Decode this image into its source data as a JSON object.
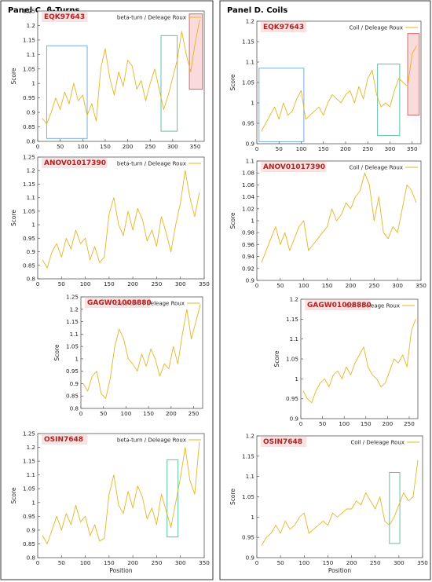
{
  "panels": [
    {
      "title": "Panel C. β-Turns"
    },
    {
      "title": "Panel D. Coils"
    }
  ],
  "chart_data": [
    {
      "type": "line",
      "panel": "C",
      "protein": "EQK97643",
      "legend": "beta-turn / Deleage  Roux",
      "xlabel": "",
      "ylabel": "Score",
      "xlim": [
        0,
        370
      ],
      "ylim": [
        0.8,
        1.25
      ],
      "xticks": [
        0,
        50,
        100,
        150,
        200,
        250,
        300,
        350
      ],
      "yticks": [
        0.8,
        0.85,
        0.9,
        0.95,
        1,
        1.05,
        1.1,
        1.15,
        1.2,
        1.25
      ],
      "x": [
        10,
        20,
        30,
        40,
        50,
        60,
        70,
        80,
        90,
        100,
        110,
        120,
        130,
        140,
        150,
        160,
        170,
        180,
        190,
        200,
        210,
        220,
        230,
        240,
        250,
        260,
        270,
        280,
        290,
        300,
        310,
        320,
        330,
        340,
        350,
        360
      ],
      "values": [
        0.88,
        0.86,
        0.9,
        0.95,
        0.91,
        0.97,
        0.93,
        1.0,
        0.94,
        0.96,
        0.89,
        0.93,
        0.87,
        1.05,
        1.12,
        1.02,
        0.96,
        1.04,
        0.99,
        1.08,
        1.06,
        0.98,
        1.01,
        0.94,
        1.0,
        1.05,
        0.98,
        0.91,
        0.96,
        1.02,
        1.08,
        1.18,
        1.1,
        1.04,
        1.14,
        1.22
      ],
      "highlights": [
        {
          "x": [
            20,
            110
          ],
          "y": [
            0.81,
            1.13
          ],
          "color": "#7aaee0"
        },
        {
          "x": [
            274,
            310
          ],
          "y": [
            0.835,
            1.165
          ],
          "color": "#5fc0a8"
        },
        {
          "x": [
            337,
            366
          ],
          "y": [
            0.98,
            1.24
          ],
          "color": "#d36a6a",
          "fill": "rgba(240,150,150,0.35)"
        }
      ]
    },
    {
      "type": "line",
      "panel": "C",
      "protein": "ANOV01017390",
      "legend": "beta-turn / Deleage  Roux",
      "xlabel": "",
      "ylabel": "Score",
      "xlim": [
        0,
        350
      ],
      "ylim": [
        0.8,
        1.25
      ],
      "xticks": [
        0,
        50,
        100,
        150,
        200,
        250,
        300,
        350
      ],
      "yticks": [
        0.8,
        0.85,
        0.9,
        0.95,
        1,
        1.05,
        1.1,
        1.15,
        1.2,
        1.25
      ],
      "x": [
        10,
        20,
        30,
        40,
        50,
        60,
        70,
        80,
        90,
        100,
        110,
        120,
        130,
        140,
        150,
        160,
        170,
        180,
        190,
        200,
        210,
        220,
        230,
        240,
        250,
        260,
        270,
        280,
        290,
        300,
        310,
        320,
        330,
        340
      ],
      "values": [
        0.87,
        0.84,
        0.9,
        0.93,
        0.88,
        0.95,
        0.91,
        0.98,
        0.93,
        0.95,
        0.87,
        0.92,
        0.86,
        0.88,
        1.04,
        1.1,
        1.0,
        0.96,
        1.05,
        0.98,
        1.06,
        1.02,
        0.94,
        0.98,
        0.92,
        1.03,
        0.97,
        0.9,
        1.0,
        1.08,
        1.2,
        1.1,
        1.03,
        1.12
      ],
      "highlights": []
    },
    {
      "type": "line",
      "panel": "C",
      "protein": "GAGW01008880",
      "legend": "beta-turn / Deleage  Roux",
      "xlabel": "",
      "ylabel": "Score",
      "xlim": [
        0,
        270
      ],
      "ylim": [
        0.8,
        1.25
      ],
      "xticks": [
        0,
        50,
        100,
        150,
        200,
        250
      ],
      "yticks": [
        0.8,
        0.85,
        0.9,
        0.95,
        1,
        1.05,
        1.1,
        1.15,
        1.2,
        1.25
      ],
      "x": [
        5,
        15,
        25,
        35,
        45,
        55,
        65,
        75,
        85,
        95,
        105,
        115,
        125,
        135,
        145,
        155,
        165,
        175,
        185,
        195,
        205,
        215,
        225,
        235,
        245,
        255,
        265
      ],
      "values": [
        0.9,
        0.87,
        0.93,
        0.95,
        0.86,
        0.84,
        0.92,
        1.05,
        1.12,
        1.08,
        1.0,
        0.98,
        0.95,
        1.02,
        0.97,
        1.04,
        1.0,
        0.93,
        0.98,
        0.96,
        1.05,
        0.98,
        1.1,
        1.2,
        1.08,
        1.15,
        1.22
      ],
      "highlights": []
    },
    {
      "type": "line",
      "panel": "C",
      "protein": "OSIN7648",
      "legend": "beta-turn / Deleage  Roux",
      "xlabel": "Position",
      "ylabel": "Score",
      "xlim": [
        0,
        350
      ],
      "ylim": [
        0.8,
        1.25
      ],
      "xticks": [
        0,
        50,
        100,
        150,
        200,
        250,
        300,
        350
      ],
      "yticks": [
        0.8,
        0.85,
        0.9,
        0.95,
        1,
        1.05,
        1.1,
        1.15,
        1.2,
        1.25
      ],
      "x": [
        10,
        20,
        30,
        40,
        50,
        60,
        70,
        80,
        90,
        100,
        110,
        120,
        130,
        140,
        150,
        160,
        170,
        180,
        190,
        200,
        210,
        220,
        230,
        240,
        250,
        260,
        270,
        280,
        290,
        300,
        310,
        320,
        330,
        340
      ],
      "values": [
        0.88,
        0.85,
        0.9,
        0.95,
        0.9,
        0.96,
        0.92,
        0.99,
        0.93,
        0.95,
        0.88,
        0.92,
        0.86,
        0.87,
        1.03,
        1.1,
        0.99,
        0.96,
        1.04,
        0.98,
        1.06,
        1.02,
        0.94,
        0.98,
        0.92,
        1.03,
        0.97,
        0.91,
        1.0,
        1.09,
        1.2,
        1.08,
        1.03,
        1.22
      ],
      "highlights": [
        {
          "x": [
            272,
            295
          ],
          "y": [
            0.875,
            1.155
          ],
          "color": "#5fc0a8"
        }
      ]
    },
    {
      "type": "line",
      "panel": "D",
      "protein": "EQK97643",
      "legend": "Coil / Deleage  Roux",
      "xlabel": "",
      "ylabel": "Score",
      "xlim": [
        0,
        370
      ],
      "ylim": [
        0.9,
        1.2
      ],
      "xticks": [
        0,
        50,
        100,
        150,
        200,
        250,
        300,
        350
      ],
      "yticks": [
        0.9,
        0.95,
        1,
        1.05,
        1.1,
        1.15,
        1.2
      ],
      "x": [
        10,
        20,
        30,
        40,
        50,
        60,
        70,
        80,
        90,
        100,
        110,
        120,
        130,
        140,
        150,
        160,
        170,
        180,
        190,
        200,
        210,
        220,
        230,
        240,
        250,
        260,
        270,
        280,
        290,
        300,
        310,
        320,
        330,
        340,
        350,
        360
      ],
      "values": [
        0.93,
        0.95,
        0.97,
        0.99,
        0.96,
        1.0,
        0.97,
        0.98,
        1.01,
        1.03,
        0.96,
        0.97,
        0.98,
        0.99,
        0.97,
        1.0,
        1.02,
        1.01,
        1.0,
        1.02,
        1.03,
        1.0,
        1.04,
        1.01,
        1.06,
        1.08,
        1.02,
        0.99,
        1.0,
        0.99,
        1.03,
        1.06,
        1.05,
        1.04,
        1.12,
        1.14
      ],
      "highlights": [
        {
          "x": [
            5,
            106
          ],
          "y": [
            0.905,
            1.085
          ],
          "color": "#7aaee0"
        },
        {
          "x": [
            272,
            322
          ],
          "y": [
            0.92,
            1.095
          ],
          "color": "#5fc0a8"
        },
        {
          "x": [
            340,
            366
          ],
          "y": [
            0.97,
            1.17
          ],
          "color": "#d36a6a",
          "fill": "rgba(240,150,150,0.35)"
        }
      ]
    },
    {
      "type": "line",
      "panel": "D",
      "protein": "ANOV01017390",
      "legend": "Coil / Deleage  Roux",
      "xlabel": "",
      "ylabel": "Score",
      "xlim": [
        0,
        350
      ],
      "ylim": [
        0.9,
        1.1
      ],
      "xticks": [
        0,
        50,
        100,
        150,
        200,
        250,
        300,
        350
      ],
      "yticks": [
        0.9,
        0.92,
        0.94,
        0.96,
        0.98,
        1,
        1.02,
        1.04,
        1.06,
        1.08,
        1.1
      ],
      "x": [
        10,
        20,
        30,
        40,
        50,
        60,
        70,
        80,
        90,
        100,
        110,
        120,
        130,
        140,
        150,
        160,
        170,
        180,
        190,
        200,
        210,
        220,
        230,
        240,
        250,
        260,
        270,
        280,
        290,
        300,
        310,
        320,
        330,
        340
      ],
      "values": [
        0.93,
        0.95,
        0.97,
        0.99,
        0.96,
        0.98,
        0.95,
        0.97,
        0.99,
        1.0,
        0.95,
        0.96,
        0.97,
        0.98,
        0.99,
        1.02,
        1.0,
        1.01,
        1.03,
        1.02,
        1.04,
        1.05,
        1.08,
        1.06,
        1.0,
        1.04,
        0.98,
        0.97,
        0.99,
        0.98,
        1.02,
        1.06,
        1.05,
        1.03
      ],
      "highlights": []
    },
    {
      "type": "line",
      "panel": "D",
      "protein": "GAGW01008880",
      "legend": "Coil / Deleage  Roux",
      "xlabel": "",
      "ylabel": "Score",
      "xlim": [
        0,
        270
      ],
      "ylim": [
        0.9,
        1.2
      ],
      "xticks": [
        0,
        50,
        100,
        150,
        200,
        250
      ],
      "yticks": [
        0.9,
        0.95,
        1,
        1.05,
        1.1,
        1.15,
        1.2
      ],
      "x": [
        5,
        15,
        25,
        35,
        45,
        55,
        65,
        75,
        85,
        95,
        105,
        115,
        125,
        135,
        145,
        155,
        165,
        175,
        185,
        195,
        205,
        215,
        225,
        235,
        245,
        255,
        265
      ],
      "values": [
        0.97,
        0.95,
        0.94,
        0.97,
        0.99,
        1.0,
        0.98,
        1.01,
        1.02,
        1.0,
        1.03,
        1.01,
        1.04,
        1.06,
        1.08,
        1.03,
        1.01,
        1.0,
        0.98,
        0.99,
        1.02,
        1.05,
        1.04,
        1.06,
        1.03,
        1.12,
        1.15
      ],
      "highlights": []
    },
    {
      "type": "line",
      "panel": "D",
      "protein": "OSIN7648",
      "legend": "Coil / Deleage  Roux",
      "xlabel": "Position",
      "ylabel": "Score",
      "xlim": [
        0,
        350
      ],
      "ylim": [
        0.9,
        1.2
      ],
      "xticks": [
        0,
        50,
        100,
        150,
        200,
        250,
        300,
        350
      ],
      "yticks": [
        0.9,
        0.95,
        1,
        1.05,
        1.1,
        1.15,
        1.2
      ],
      "x": [
        10,
        20,
        30,
        40,
        50,
        60,
        70,
        80,
        90,
        100,
        110,
        120,
        130,
        140,
        150,
        160,
        170,
        180,
        190,
        200,
        210,
        220,
        230,
        240,
        250,
        260,
        270,
        280,
        290,
        300,
        310,
        320,
        330,
        340
      ],
      "values": [
        0.93,
        0.95,
        0.96,
        0.98,
        0.96,
        0.99,
        0.97,
        0.98,
        1.0,
        1.01,
        0.96,
        0.97,
        0.98,
        0.99,
        0.98,
        1.01,
        1.0,
        1.01,
        1.02,
        1.02,
        1.04,
        1.03,
        1.06,
        1.04,
        1.02,
        1.05,
        0.99,
        0.98,
        1.0,
        1.03,
        1.06,
        1.04,
        1.05,
        1.14
      ],
      "highlights": [
        {
          "x": [
            280,
            302
          ],
          "y": [
            0.935,
            1.11
          ],
          "color": "#5fc0a8"
        }
      ]
    }
  ]
}
